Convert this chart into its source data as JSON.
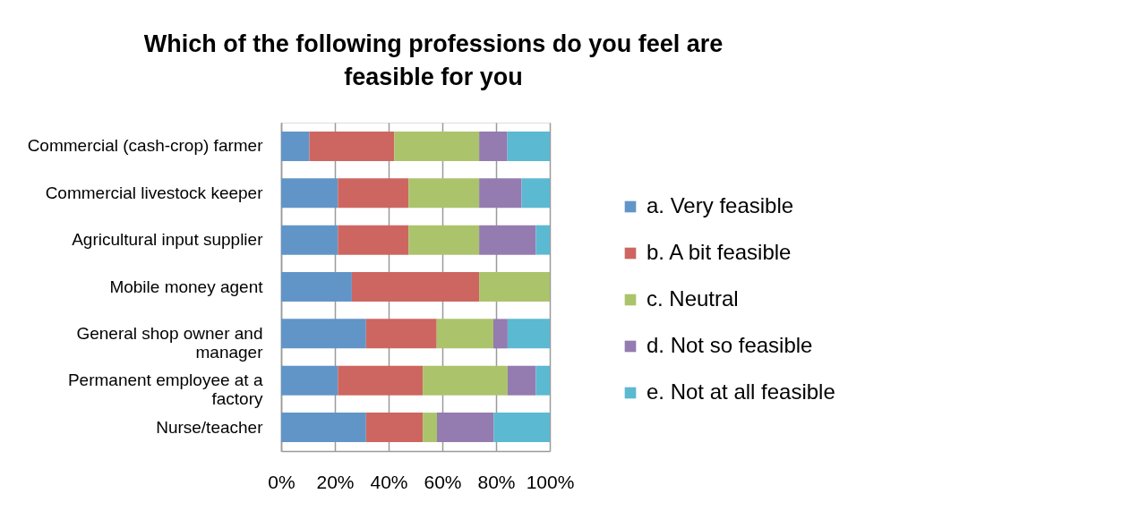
{
  "chart_data": {
    "type": "bar",
    "orientation": "horizontal",
    "stacked": true,
    "title": "Which of the following professions do you feel are feasible for you",
    "categories": [
      "Commercial (cash-crop) farmer",
      "Commercial livestock keeper",
      "Agricultural input supplier",
      "Mobile money agent",
      "General shop owner and manager",
      "Permanent employee at a factory",
      "Nurse/teacher"
    ],
    "series": [
      {
        "name": "a. Very feasible",
        "color": "#6195c8",
        "values": [
          10.5,
          21.1,
          21.1,
          26.3,
          31.6,
          21.1,
          31.6
        ]
      },
      {
        "name": "b. A bit feasible",
        "color": "#cd6660",
        "values": [
          31.6,
          26.3,
          26.3,
          47.4,
          26.3,
          31.6,
          21.1
        ]
      },
      {
        "name": "c. Neutral",
        "color": "#abc46c",
        "values": [
          31.6,
          26.3,
          26.3,
          26.3,
          21.1,
          31.6,
          5.3
        ]
      },
      {
        "name": "d. Not so feasible",
        "color": "#947bb0",
        "values": [
          10.5,
          15.8,
          21.1,
          0,
          5.3,
          10.5,
          21.1
        ]
      },
      {
        "name": "e. Not at all feasible",
        "color": "#5bb9d1",
        "values": [
          15.8,
          10.5,
          5.2,
          0,
          15.7,
          5.2,
          20.9
        ]
      }
    ],
    "xlim": [
      0,
      100
    ],
    "xticks": [
      {
        "value": 0,
        "label": "0%"
      },
      {
        "value": 20,
        "label": "20%"
      },
      {
        "value": 40,
        "label": "40%"
      },
      {
        "value": 60,
        "label": "60%"
      },
      {
        "value": 80,
        "label": "80%"
      },
      {
        "value": 100,
        "label": "100%"
      }
    ],
    "grid": "x",
    "legend": "right"
  }
}
